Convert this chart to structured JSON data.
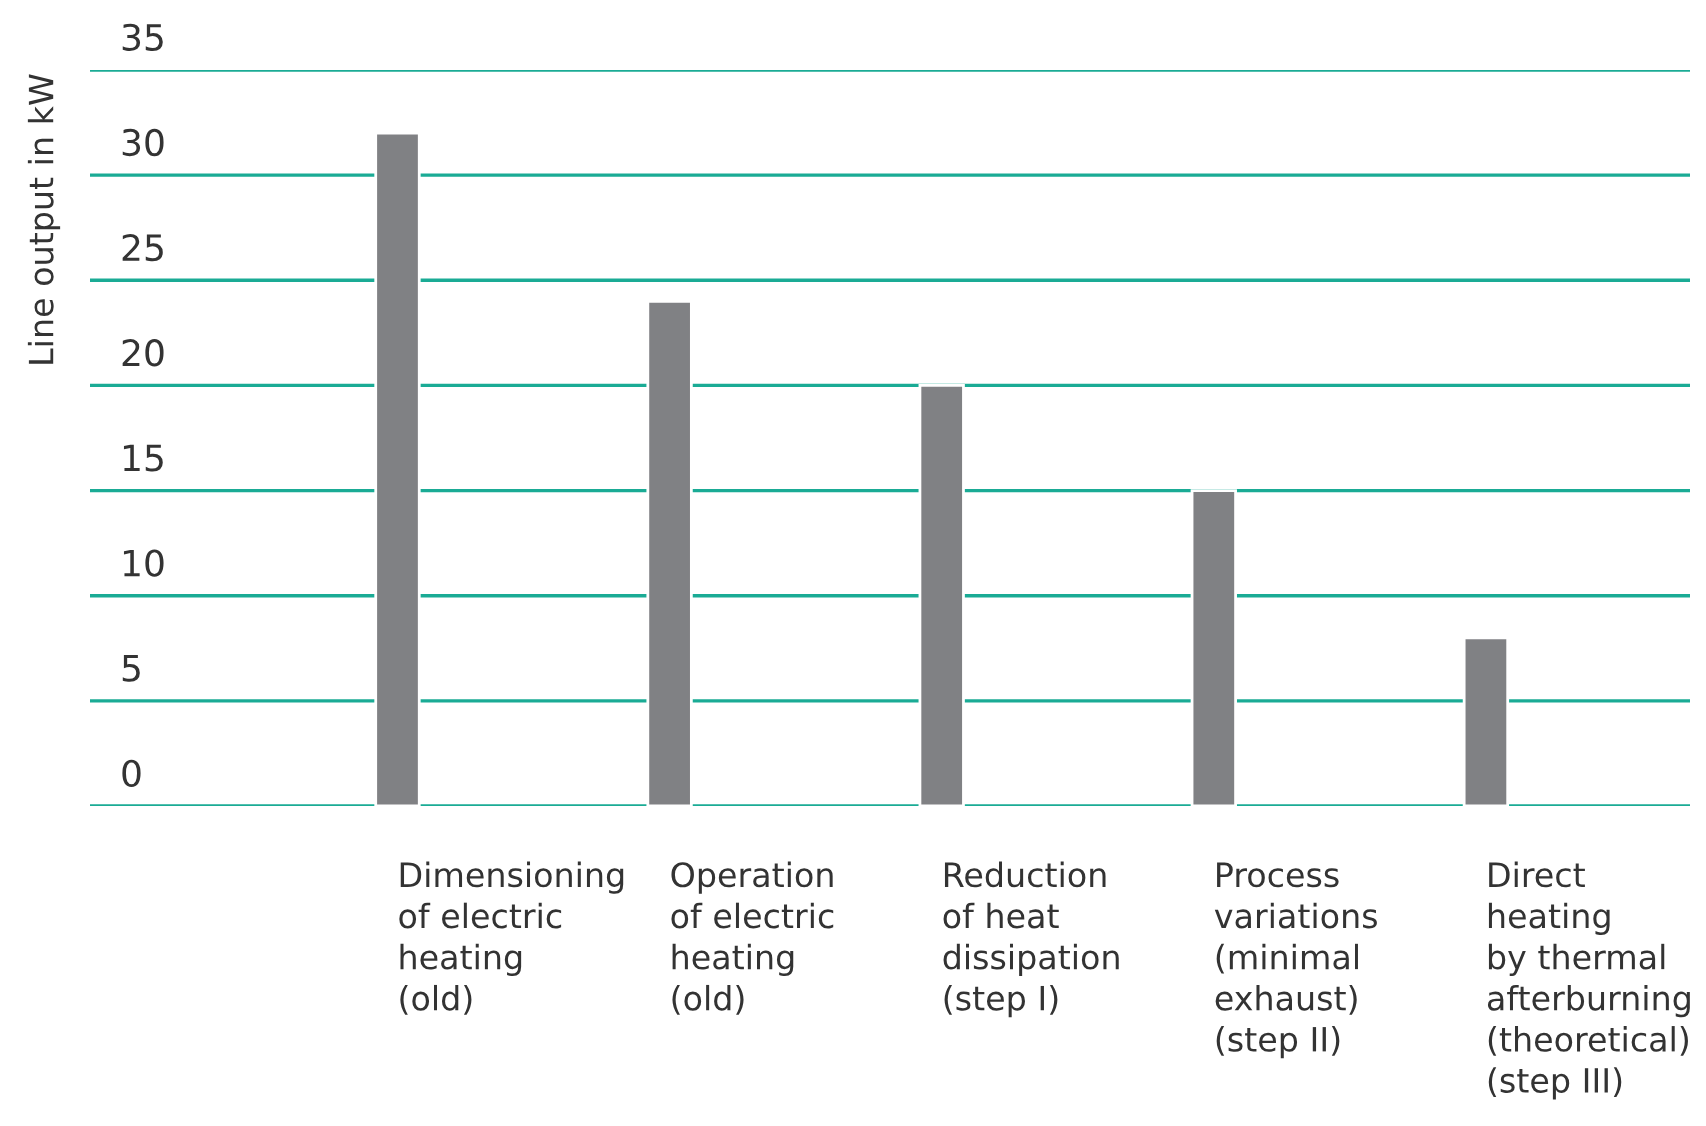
{
  "chart_data": {
    "type": "bar",
    "ylabel": "Line output in kW",
    "categories": [
      "Dimensioning\nof electric\nheating\n(old)",
      "Operation\nof electric\nheating\n(old)",
      "Reduction\nof heat\ndissipation\n(step I)",
      "Process\nvariations\n(minimal\nexhaust)\n(step II)",
      "Direct\nheating\nby thermal\nafterburning\n(theoretical)\n(step III)"
    ],
    "values": [
      32,
      24,
      20,
      15,
      8
    ],
    "color": "#808184",
    "ylim": [
      0,
      35
    ],
    "yticks": [
      0,
      5,
      10,
      15,
      20,
      25,
      30,
      35
    ],
    "grid": "y"
  }
}
